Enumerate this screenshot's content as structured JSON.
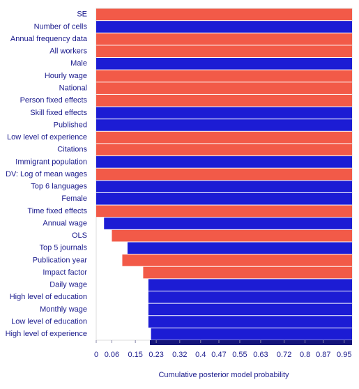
{
  "chart_data": {
    "type": "bma",
    "xlabel": "Cumulative posterior model probability",
    "categories": [
      "SE",
      "Number of cells",
      "Annual frequency data",
      "All workers",
      "Male",
      "Hourly wage",
      "National",
      "Person fixed effects",
      "Skill fixed effects",
      "Published",
      "Low level of experience",
      "Citations",
      "Immigrant population",
      "DV: Log of mean wages",
      "Top 6 languages",
      "Female",
      "Time fixed effects",
      "Annual wage",
      "OLS",
      "Top 5 journals",
      "Publication year",
      "Impact factor",
      "Daily wage",
      "High level of education",
      "Monthly wage",
      "Low level of education",
      "High level of experience"
    ],
    "values": [
      0,
      0,
      0,
      0,
      0,
      0,
      0,
      0,
      0,
      0,
      0,
      0,
      0,
      0,
      0,
      0,
      0,
      0.03,
      0.06,
      0.12,
      0.1,
      0.18,
      0.2,
      0.2,
      0.2,
      0.2,
      0.21
    ],
    "colors": [
      "#f25a48",
      "#1c1cd4",
      "#f25a48",
      "#f25a48",
      "#1c1cd4",
      "#f25a48",
      "#f25a48",
      "#f25a48",
      "#1c1cd4",
      "#1c1cd4",
      "#f25a48",
      "#f25a48",
      "#1c1cd4",
      "#f25a48",
      "#1c1cd4",
      "#1c1cd4",
      "#f25a48",
      "#1c1cd4",
      "#f25a48",
      "#1c1cd4",
      "#f25a48",
      "#f25a48",
      "#1c1cd4",
      "#1c1cd4",
      "#1c1cd4",
      "#1c1cd4",
      "#1c1cd4"
    ],
    "xlim": [
      0,
      0.98
    ],
    "xticks": [
      0,
      0.06,
      0.15,
      0.23,
      0.32,
      0.4,
      0.47,
      0.55,
      0.63,
      0.72,
      0.8,
      0.87,
      0.95
    ]
  }
}
